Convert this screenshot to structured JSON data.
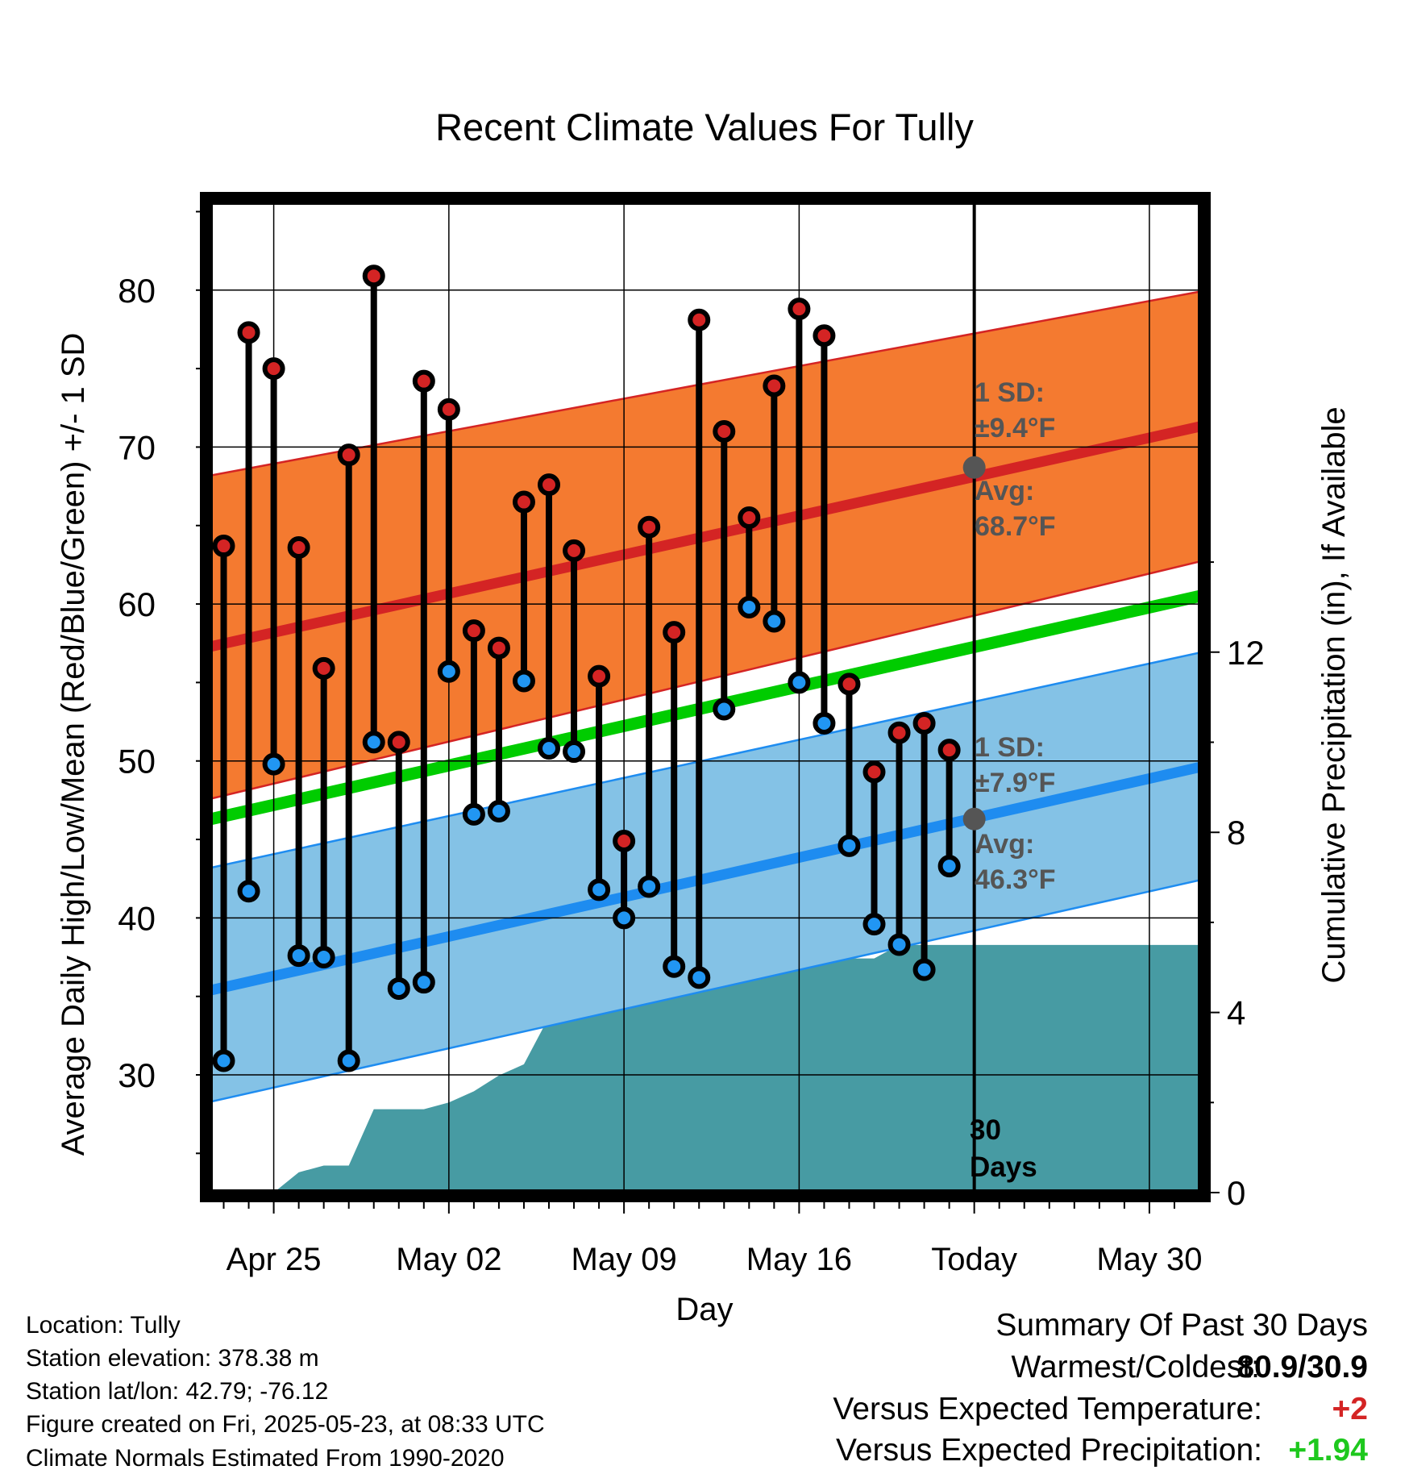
{
  "chart_data": {
    "type": "line",
    "title": "Recent Climate Values For Tully",
    "xlabel": "Day",
    "ylabel": "Average Daily High/Low/Mean (Red/Blue/Green) +/- 1 SD",
    "y2label": "Cumulative Precipitation (in), If Available",
    "x_range_days": [
      -28.5,
      11
    ],
    "ylim": [
      22.5,
      86
    ],
    "y2lim": [
      0,
      20
    ],
    "y_ticks": [
      30,
      40,
      50,
      60,
      70,
      80
    ],
    "y2_ticks": [
      0,
      4,
      8,
      12
    ],
    "x_ticks": [
      {
        "day": -26,
        "label": "Apr 25"
      },
      {
        "day": -19,
        "label": "May 02"
      },
      {
        "day": -12,
        "label": "May 09"
      },
      {
        "day": -5,
        "label": "May 16"
      },
      {
        "day": 2,
        "label": "Today"
      },
      {
        "day": 9,
        "label": "May 30"
      }
    ],
    "normals": {
      "x": [
        -28.5,
        11
      ],
      "high_avg": [
        57.3,
        71.3
      ],
      "high_upper": [
        68.2,
        79.9
      ],
      "high_lower": [
        47.6,
        62.7
      ],
      "mean_avg": [
        46.3,
        60.5
      ],
      "low_avg": [
        35.4,
        49.6
      ],
      "low_upper": [
        43.2,
        56.9
      ],
      "low_lower": [
        28.3,
        42.4
      ]
    },
    "daily": {
      "x": [
        -28,
        -27,
        -26,
        -25,
        -24,
        -23,
        -22,
        -21,
        -20,
        -19,
        -18,
        -17,
        -16,
        -15,
        -14,
        -13,
        -12,
        -11,
        -10,
        -9,
        -8,
        -7,
        -6,
        -5,
        -4,
        -3,
        -2,
        -1,
        0,
        1
      ],
      "high": [
        63.7,
        77.3,
        75.0,
        63.6,
        55.9,
        69.5,
        80.9,
        51.2,
        74.2,
        72.4,
        58.3,
        57.2,
        66.5,
        67.6,
        63.4,
        55.4,
        44.9,
        64.9,
        58.2,
        78.1,
        71.0,
        65.5,
        73.9,
        78.8,
        77.1,
        54.9,
        49.3,
        51.8,
        52.4,
        50.7
      ],
      "low": [
        30.9,
        41.7,
        49.8,
        37.6,
        37.5,
        30.9,
        51.2,
        35.5,
        35.9,
        55.7,
        46.6,
        46.8,
        55.1,
        50.8,
        50.6,
        41.8,
        40.0,
        42.0,
        36.9,
        36.2,
        53.3,
        59.8,
        58.9,
        55.0,
        52.4,
        44.6,
        39.6,
        38.3,
        36.7,
        43.3
      ]
    },
    "precipitation": {
      "x": [
        -26,
        -25,
        -24,
        -23,
        -22,
        -21,
        -20,
        -19,
        -18,
        -17,
        -16,
        -15,
        -14,
        -13,
        -12,
        -11,
        -10,
        -9,
        -8,
        -7,
        -6,
        -5,
        -4,
        -3,
        -2,
        -1,
        0,
        1,
        2,
        11
      ],
      "cumulative": [
        0.0,
        0.45,
        0.6,
        0.6,
        1.85,
        1.85,
        1.85,
        2.0,
        2.25,
        2.6,
        2.85,
        3.9,
        4.2,
        4.2,
        4.9,
        4.9,
        4.95,
        4.95,
        4.95,
        4.95,
        4.95,
        5.05,
        5.2,
        5.2,
        5.2,
        5.5,
        5.5,
        5.5,
        5.5,
        5.5
      ]
    },
    "annotations": {
      "high_sd_label": "1 SD:",
      "high_sd_value": "±9.4°F",
      "high_avg_label": "Avg:",
      "high_avg_value": "68.7°F",
      "high_avg_point": 68.7,
      "low_sd_label": "1 SD:",
      "low_sd_value": "±7.9°F",
      "low_avg_label": "Avg:",
      "low_avg_value": "46.3°F",
      "low_avg_point": 46.3,
      "today_day": 2,
      "days_line1": "30",
      "days_line2": "Days"
    },
    "colors": {
      "high_band": "#f47a30",
      "high_line": "#d42424",
      "low_band": "#84c2e6",
      "low_line": "#1e8cf0",
      "mean_line": "#00cc00",
      "precip": "#479ba3",
      "high_dot": "#d42424",
      "low_dot": "#2196f3",
      "annotation": "#555555"
    }
  },
  "footer": {
    "location": "Location: Tully",
    "elevation": "Station elevation: 378.38 m",
    "latlon": "Station lat/lon: 42.79; -76.12",
    "created": "Figure created on Fri, 2025-05-23, at 08:33 UTC",
    "normals": "Climate Normals Estimated From 1990-2020"
  },
  "summary": {
    "title": "Summary Of Past 30 Days",
    "warmest_label": "Warmest/Coldest:",
    "warmest_value": "80.9/30.9",
    "temp_label": "Versus Expected Temperature:",
    "temp_value": "+2",
    "temp_color": "#d42424",
    "precip_label": "Versus Expected Precipitation:",
    "precip_value": "+1.94",
    "precip_color": "#1ec81e"
  }
}
